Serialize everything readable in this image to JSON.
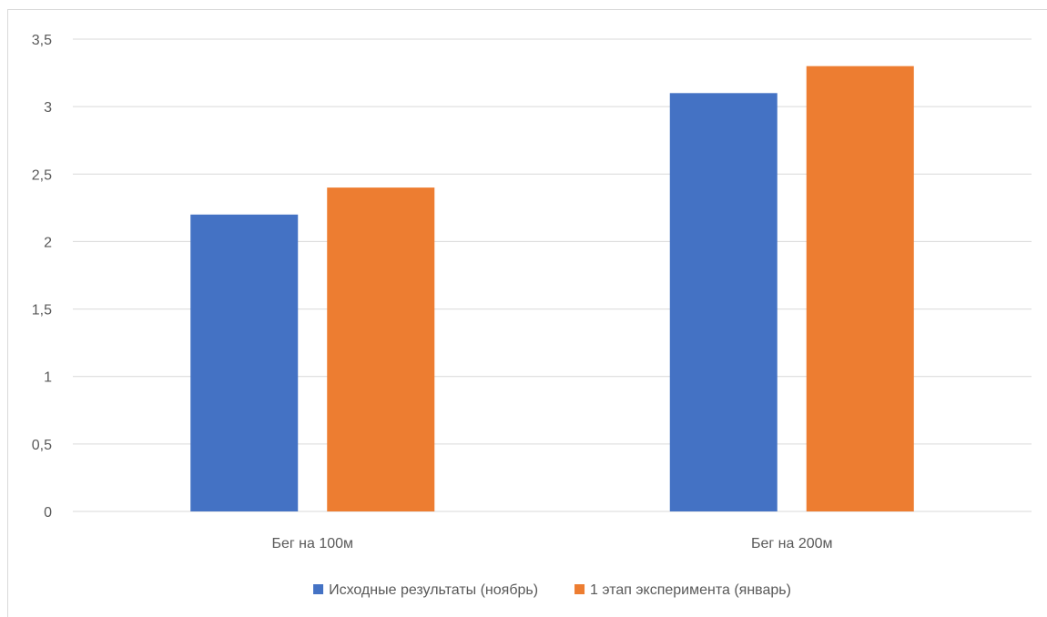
{
  "chart_data": {
    "type": "bar",
    "categories": [
      "Бег на 100м",
      "Бег на 200м"
    ],
    "series": [
      {
        "name": "Исходные результаты (ноябрь)",
        "color": "#4472c4",
        "values": [
          2.2,
          3.1
        ]
      },
      {
        "name": "1 этап эксперимента (январь)",
        "color": "#ed7d31",
        "values": [
          2.4,
          3.3
        ]
      }
    ],
    "ylim": [
      0,
      3.5
    ],
    "yticks": [
      "0",
      "0,5",
      "1",
      "1,5",
      "2",
      "2,5",
      "3",
      "3,5"
    ],
    "grid": true,
    "legend_position": "bottom"
  }
}
